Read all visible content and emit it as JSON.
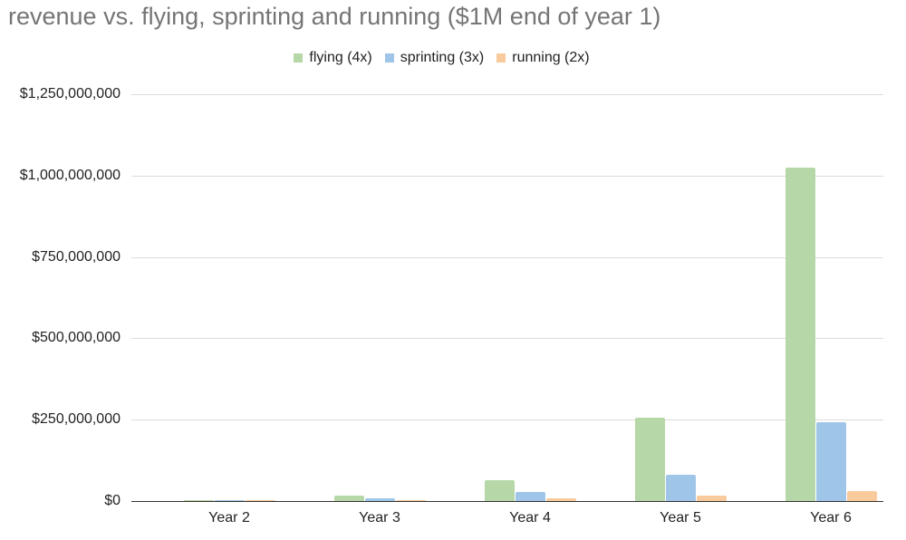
{
  "chart_data": {
    "type": "bar",
    "title": "revenue vs. flying, sprinting and running ($1M end of year 1)",
    "xlabel": "",
    "ylabel": "",
    "categories": [
      "Year 2",
      "Year 3",
      "Year 4",
      "Year 5",
      "Year 6"
    ],
    "series": [
      {
        "name": "flying (4x)",
        "color": "#b6d7a8",
        "values": [
          4000000,
          16000000,
          64000000,
          256000000,
          1024000000
        ]
      },
      {
        "name": "sprinting (3x)",
        "color": "#9fc5e8",
        "values": [
          3000000,
          9000000,
          27000000,
          81000000,
          243000000
        ]
      },
      {
        "name": "running (2x)",
        "color": "#f9cb9c",
        "values": [
          2000000,
          4000000,
          8000000,
          16000000,
          32000000
        ]
      }
    ],
    "ylim": [
      0,
      1250000000
    ],
    "yticks": [
      "$0",
      "$250,000,000",
      "$500,000,000",
      "$750,000,000",
      "$1,000,000,000",
      "$1,250,000,000"
    ],
    "grid": true,
    "legend_position": "top"
  }
}
